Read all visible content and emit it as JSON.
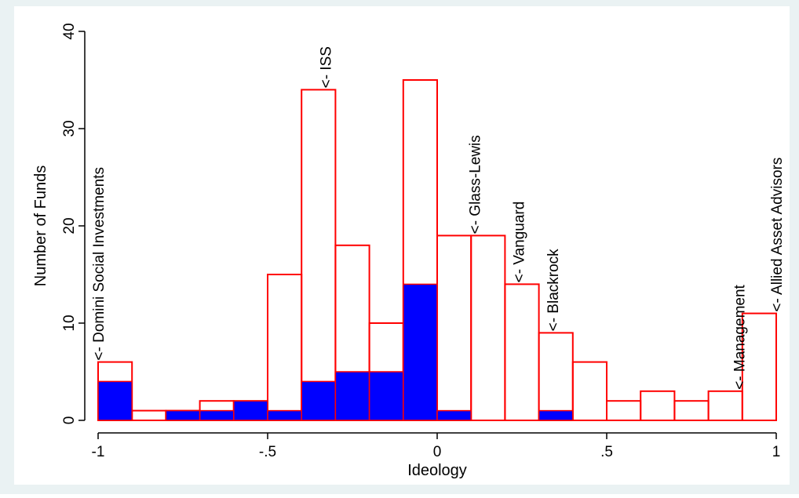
{
  "chart_data": {
    "type": "bar",
    "xlabel": "Ideology",
    "ylabel": "Number of Funds",
    "xlim": [
      -1,
      1
    ],
    "ylim": [
      0,
      40
    ],
    "bin_width": 0.1,
    "x_ticks": [
      -1,
      -0.5,
      0,
      0.5,
      1
    ],
    "x_tick_labels": [
      "-1",
      "-.5",
      "0",
      ".5",
      "1"
    ],
    "y_ticks": [
      0,
      10,
      20,
      30,
      40
    ],
    "y_tick_labels": [
      "0",
      "10",
      "20",
      "30",
      "40"
    ],
    "grid": false,
    "series": [
      {
        "color": "#ff0000",
        "fill": "none",
        "values": [
          6,
          1,
          1,
          2,
          2,
          15,
          34,
          18,
          10,
          35,
          19,
          19,
          14,
          9,
          6,
          2,
          3,
          2,
          3,
          11
        ]
      },
      {
        "color": "#0000ff",
        "fill": "solid",
        "values": [
          4,
          0,
          1,
          1,
          2,
          1,
          4,
          5,
          5,
          14,
          1,
          0,
          0,
          1,
          0,
          0,
          0,
          0,
          0,
          0
        ]
      }
    ],
    "bin_starts": [
      -1,
      -0.9,
      -0.8,
      -0.7,
      -0.6,
      -0.5,
      -0.4,
      -0.3,
      -0.2,
      -0.1,
      0,
      0.1,
      0.2,
      0.3,
      0.4,
      0.5,
      0.6,
      0.7,
      0.8,
      0.9
    ],
    "annotations": [
      {
        "text": "<- Domini Social Investments",
        "x": -1.0,
        "y": 6
      },
      {
        "text": "<- ISS",
        "x": -0.33,
        "y": 34
      },
      {
        "text": "<- Glass-Lewis",
        "x": 0.11,
        "y": 19
      },
      {
        "text": "<- Vanguard",
        "x": 0.24,
        "y": 14
      },
      {
        "text": "<- Blackrock",
        "x": 0.34,
        "y": 9
      },
      {
        "text": "<- Management",
        "x": 0.89,
        "y": 3
      },
      {
        "text": "<- Allied Asset Advisors",
        "x": 1.0,
        "y": 11
      }
    ],
    "colors": {
      "background": "#eaf2f3",
      "plot_background": "#ffffff",
      "outline": "#ff0000",
      "fill": "#0000ff",
      "axis": "#000000"
    }
  }
}
